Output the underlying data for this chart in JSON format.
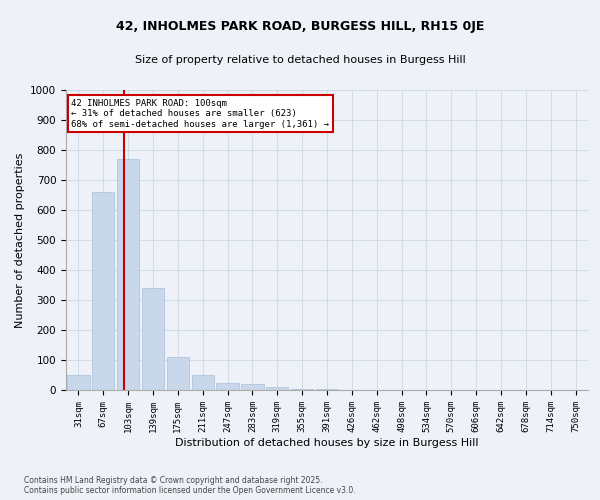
{
  "title1": "42, INHOLMES PARK ROAD, BURGESS HILL, RH15 0JE",
  "title2": "Size of property relative to detached houses in Burgess Hill",
  "xlabel": "Distribution of detached houses by size in Burgess Hill",
  "ylabel": "Number of detached properties",
  "bar_color": "#c8d8ea",
  "bar_edge_color": "#a8c0d8",
  "bin_labels": [
    "31sqm",
    "67sqm",
    "103sqm",
    "139sqm",
    "175sqm",
    "211sqm",
    "247sqm",
    "283sqm",
    "319sqm",
    "355sqm",
    "391sqm",
    "426sqm",
    "462sqm",
    "498sqm",
    "534sqm",
    "570sqm",
    "606sqm",
    "642sqm",
    "678sqm",
    "714sqm",
    "750sqm"
  ],
  "bar_heights": [
    50,
    660,
    770,
    340,
    110,
    50,
    25,
    20,
    10,
    5,
    2,
    1,
    0,
    0,
    0,
    0,
    0,
    0,
    0,
    0,
    0
  ],
  "vline_color": "#cc0000",
  "vline_pos": 1.85,
  "annotation_text": "42 INHOLMES PARK ROAD: 100sqm\n← 31% of detached houses are smaller (623)\n68% of semi-detached houses are larger (1,361) →",
  "annotation_box_color": "white",
  "annotation_box_edgecolor": "#cc0000",
  "ylim": [
    0,
    1000
  ],
  "yticks": [
    0,
    100,
    200,
    300,
    400,
    500,
    600,
    700,
    800,
    900,
    1000
  ],
  "footer": "Contains HM Land Registry data © Crown copyright and database right 2025.\nContains public sector information licensed under the Open Government Licence v3.0.",
  "grid_color": "#d0dce8",
  "background_color": "#eef2f8"
}
